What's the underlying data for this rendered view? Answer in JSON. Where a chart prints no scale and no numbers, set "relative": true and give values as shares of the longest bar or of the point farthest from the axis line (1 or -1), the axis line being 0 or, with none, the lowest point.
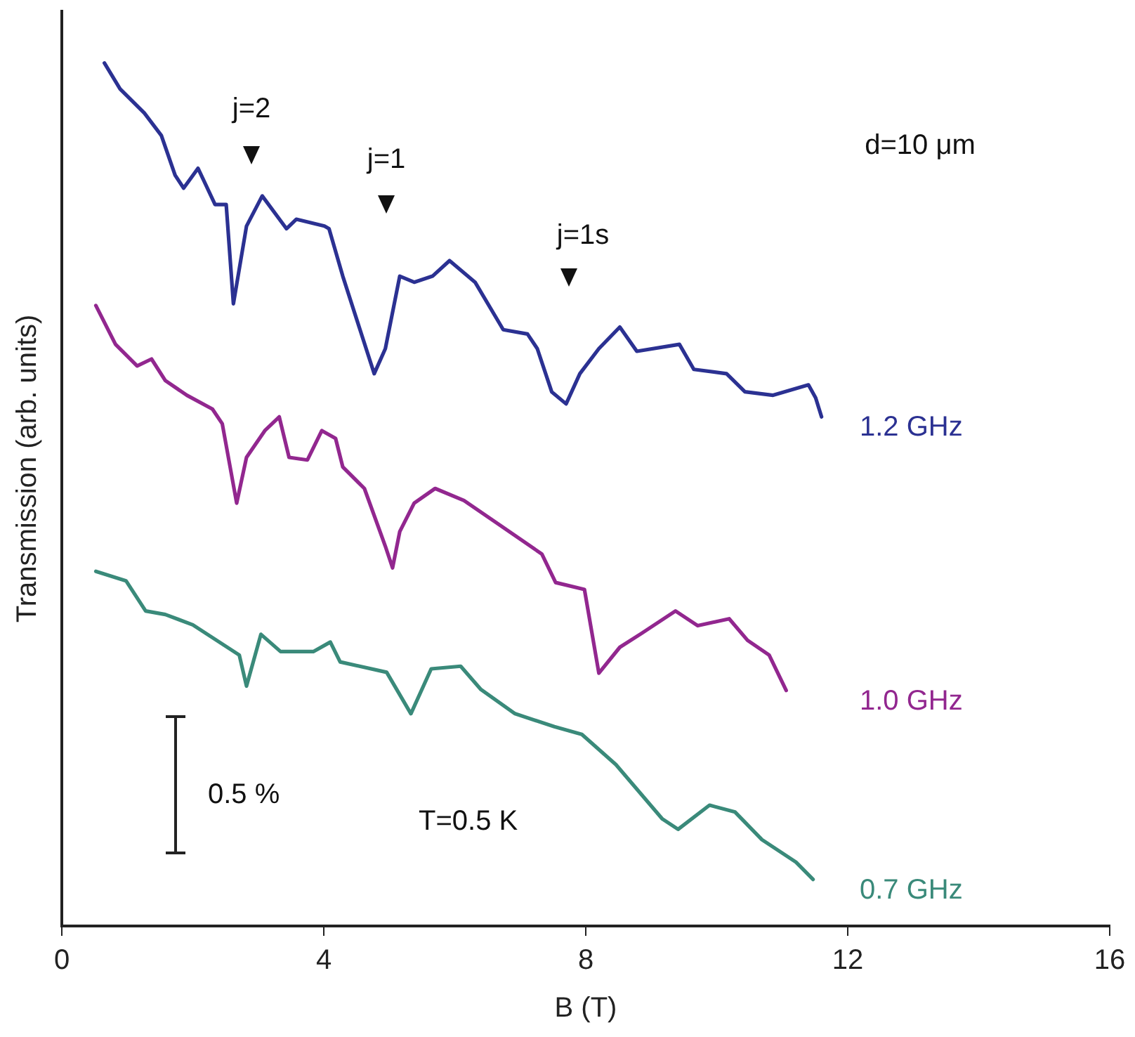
{
  "chart_data": {
    "type": "line",
    "relative": true,
    "xlabel": "B (T)",
    "ylabel": "Transmission (arb. units)",
    "xlim": [
      0,
      16
    ],
    "xticks": [
      0,
      4,
      8,
      12,
      16
    ],
    "grid": false,
    "legend": false,
    "marker": "none",
    "line_style": "solid",
    "series": [
      {
        "name": "1.2 GHz",
        "color": "#2b3192",
        "x": [
          0.65,
          0.89,
          1.26,
          1.52,
          1.73,
          1.86,
          2.08,
          2.34,
          2.51,
          2.62,
          2.82,
          3.06,
          3.43,
          3.58,
          4.01,
          4.08,
          4.29,
          4.77,
          4.94,
          5.16,
          5.38,
          5.66,
          5.92,
          6.31,
          6.74,
          7.11,
          7.26,
          7.48,
          7.7,
          7.91,
          8.2,
          8.52,
          8.78,
          9.43,
          9.65,
          10.15,
          10.43,
          10.86,
          11.4,
          11.51,
          11.6
        ],
        "values": [
          1.0,
          0.97,
          0.942,
          0.916,
          0.87,
          0.855,
          0.878,
          0.836,
          0.836,
          0.721,
          0.811,
          0.846,
          0.808,
          0.819,
          0.811,
          0.808,
          0.753,
          0.64,
          0.669,
          0.753,
          0.746,
          0.753,
          0.771,
          0.746,
          0.691,
          0.686,
          0.669,
          0.619,
          0.605,
          0.64,
          0.669,
          0.694,
          0.666,
          0.674,
          0.645,
          0.64,
          0.619,
          0.615,
          0.627,
          0.612,
          0.59
        ]
      },
      {
        "name": "1.0 GHz",
        "color": "#92278f",
        "x": [
          0.52,
          0.82,
          1.15,
          1.37,
          1.58,
          1.91,
          2.3,
          2.45,
          2.67,
          2.82,
          3.1,
          3.32,
          3.47,
          3.75,
          3.97,
          4.18,
          4.29,
          4.62,
          4.94,
          5.05,
          5.16,
          5.38,
          5.7,
          6.14,
          6.68,
          7.33,
          7.54,
          7.98,
          8.2,
          8.52,
          8.85,
          9.37,
          9.71,
          10.19,
          10.47,
          10.8,
          11.06
        ],
        "values": [
          0.719,
          0.674,
          0.649,
          0.657,
          0.632,
          0.615,
          0.599,
          0.582,
          0.49,
          0.543,
          0.574,
          0.59,
          0.543,
          0.54,
          0.574,
          0.565,
          0.532,
          0.507,
          0.44,
          0.415,
          0.457,
          0.49,
          0.507,
          0.493,
          0.465,
          0.431,
          0.398,
          0.39,
          0.293,
          0.323,
          0.339,
          0.365,
          0.348,
          0.356,
          0.331,
          0.314,
          0.273
        ]
      },
      {
        "name": "0.7 GHz",
        "color": "#3a8a7a",
        "x": [
          0.52,
          0.98,
          1.28,
          1.58,
          2.0,
          2.71,
          2.82,
          3.04,
          3.34,
          3.84,
          4.1,
          4.25,
          4.96,
          5.33,
          5.64,
          6.09,
          6.4,
          6.92,
          7.52,
          7.94,
          8.46,
          9.17,
          9.41,
          9.89,
          10.28,
          10.69,
          11.21,
          11.47
        ],
        "values": [
          0.411,
          0.4,
          0.365,
          0.361,
          0.349,
          0.314,
          0.278,
          0.338,
          0.318,
          0.318,
          0.329,
          0.306,
          0.294,
          0.246,
          0.298,
          0.301,
          0.274,
          0.246,
          0.231,
          0.222,
          0.187,
          0.124,
          0.112,
          0.14,
          0.132,
          0.1,
          0.074,
          0.054
        ]
      }
    ],
    "annotations": [
      "j=2",
      "j=1",
      "j=1s",
      "d=10 μm",
      "0.5 %",
      "T=0.5 K"
    ]
  }
}
